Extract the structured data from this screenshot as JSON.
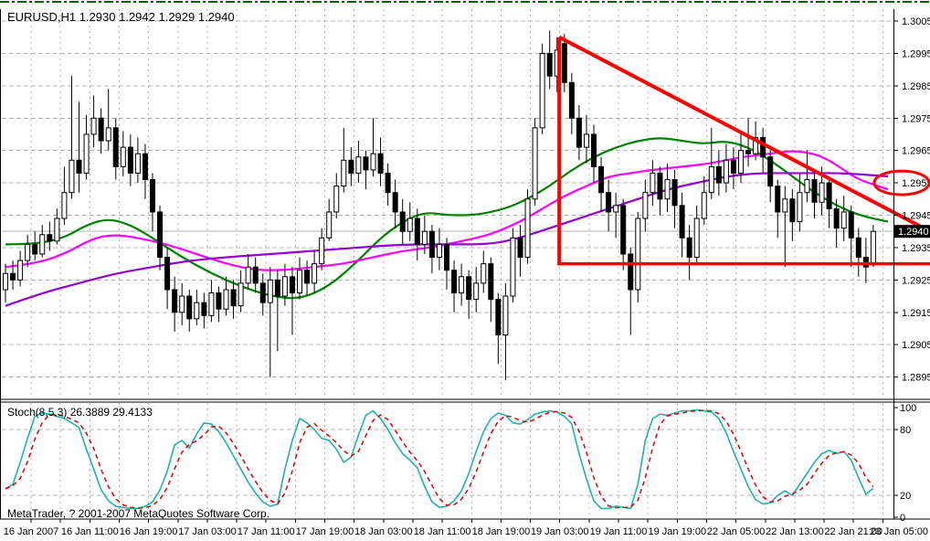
{
  "window": {
    "quote_line": "EURUSD,H1 1.2930 1.2942 1.2929 1.2940",
    "copyright": "MetaTrader, ? 2001-2007 MetaQuotes Software Corp."
  },
  "chart_data": {
    "type": "candlestick",
    "symbol": "EURUSD",
    "timeframe": "H1",
    "current_bar": {
      "open": 1.293,
      "high": 1.2942,
      "low": 1.2929,
      "close": 1.294
    },
    "bid": 1.294,
    "price_axis": {
      "labels": [
        "1.3005",
        "1.2995",
        "1.2985",
        "1.2975",
        "1.2965",
        "1.2955",
        "1.2945",
        "1.2935",
        "1.2925",
        "1.2915",
        "1.2905",
        "1.2895"
      ],
      "top": 1.3005,
      "step": 0.001
    },
    "time_axis": {
      "labels": [
        "16 Jan 2007",
        "16 Jan 11:00",
        "16 Jan 19:00",
        "17 Jan 03:00",
        "17 Jan 11:00",
        "17 Jan 19:00",
        "18 Jan 03:00",
        "18 Jan 11:00",
        "18 Jan 19:00",
        "19 Jan 03:00",
        "19 Jan 11:00",
        "19 Jan 19:00",
        "22 Jan 05:00",
        "22 Jan 13:00",
        "22 Jan 21:00",
        "23 Jan 05:00"
      ]
    },
    "candle_colors": {
      "bull_fill": "#ffffff",
      "bear_fill": "#000000",
      "outline": "#000000"
    },
    "candles": [
      [
        1.2922,
        1.293,
        1.2918,
        1.2927
      ],
      [
        1.2927,
        1.2931,
        1.2922,
        1.2925
      ],
      [
        1.2925,
        1.2934,
        1.2923,
        1.2931
      ],
      [
        1.2931,
        1.2939,
        1.2929,
        1.2936
      ],
      [
        1.2936,
        1.294,
        1.2931,
        1.2933
      ],
      [
        1.2933,
        1.2942,
        1.2932,
        1.2939
      ],
      [
        1.2939,
        1.2943,
        1.2934,
        1.2937
      ],
      [
        1.2937,
        1.2947,
        1.2936,
        1.2944
      ],
      [
        1.2944,
        1.296,
        1.2942,
        1.2952
      ],
      [
        1.2952,
        1.2988,
        1.295,
        1.2962
      ],
      [
        1.2962,
        1.298,
        1.2952,
        1.2958
      ],
      [
        1.2958,
        1.2976,
        1.2956,
        1.297
      ],
      [
        1.297,
        1.2982,
        1.2966,
        1.2975
      ],
      [
        1.2975,
        1.2978,
        1.2964,
        1.2968
      ],
      [
        1.2968,
        1.2984,
        1.2965,
        1.2972
      ],
      [
        1.2972,
        1.2975,
        1.2956,
        1.296
      ],
      [
        1.296,
        1.2971,
        1.2957,
        1.2966
      ],
      [
        1.2966,
        1.297,
        1.2954,
        1.2958
      ],
      [
        1.2958,
        1.2969,
        1.2955,
        1.2964
      ],
      [
        1.2964,
        1.2967,
        1.295,
        1.2956
      ],
      [
        1.2956,
        1.2958,
        1.294,
        1.2946
      ],
      [
        1.2946,
        1.2948,
        1.2928,
        1.2932
      ],
      [
        1.2932,
        1.2935,
        1.2916,
        1.2922
      ],
      [
        1.2922,
        1.2926,
        1.2909,
        1.2915
      ],
      [
        1.2915,
        1.2924,
        1.2911,
        1.292
      ],
      [
        1.292,
        1.2922,
        1.2909,
        1.2913
      ],
      [
        1.2913,
        1.2922,
        1.2911,
        1.2918
      ],
      [
        1.2918,
        1.2921,
        1.291,
        1.2914
      ],
      [
        1.2914,
        1.2925,
        1.2912,
        1.2921
      ],
      [
        1.2921,
        1.2923,
        1.2912,
        1.2916
      ],
      [
        1.2916,
        1.2926,
        1.2914,
        1.2922
      ],
      [
        1.2922,
        1.2925,
        1.2913,
        1.2917
      ],
      [
        1.2917,
        1.2928,
        1.2915,
        1.2924
      ],
      [
        1.2924,
        1.2933,
        1.2922,
        1.2929
      ],
      [
        1.2929,
        1.2932,
        1.2921,
        1.2924
      ],
      [
        1.2924,
        1.2927,
        1.2914,
        1.2918
      ],
      [
        1.2918,
        1.2929,
        1.2895,
        1.2925
      ],
      [
        1.2925,
        1.2928,
        1.2903,
        1.292
      ],
      [
        1.292,
        1.293,
        1.2917,
        1.2926
      ],
      [
        1.2926,
        1.2929,
        1.2908,
        1.2921
      ],
      [
        1.2921,
        1.2932,
        1.2919,
        1.2928
      ],
      [
        1.2928,
        1.2931,
        1.292,
        1.2924
      ],
      [
        1.2924,
        1.2934,
        1.2921,
        1.293
      ],
      [
        1.293,
        1.2941,
        1.2928,
        1.2938
      ],
      [
        1.2938,
        1.295,
        1.2937,
        1.2946
      ],
      [
        1.2946,
        1.2958,
        1.2944,
        1.2954
      ],
      [
        1.2954,
        1.2972,
        1.2952,
        1.2962
      ],
      [
        1.2962,
        1.2966,
        1.2954,
        1.2958
      ],
      [
        1.2958,
        1.2968,
        1.2955,
        1.2963
      ],
      [
        1.2963,
        1.2965,
        1.2953,
        1.2959
      ],
      [
        1.2959,
        1.2975,
        1.2957,
        1.2964
      ],
      [
        1.2964,
        1.2969,
        1.2954,
        1.2958
      ],
      [
        1.2958,
        1.2961,
        1.2948,
        1.2952
      ],
      [
        1.2952,
        1.2956,
        1.2941,
        1.2946
      ],
      [
        1.2946,
        1.295,
        1.2936,
        1.294
      ],
      [
        1.294,
        1.2949,
        1.2937,
        1.2944
      ],
      [
        1.2944,
        1.2947,
        1.2931,
        1.2936
      ],
      [
        1.2936,
        1.2945,
        1.2933,
        1.294
      ],
      [
        1.294,
        1.2942,
        1.2927,
        1.2932
      ],
      [
        1.2932,
        1.2941,
        1.2928,
        1.2936
      ],
      [
        1.2936,
        1.2938,
        1.2922,
        1.2928
      ],
      [
        1.2928,
        1.2931,
        1.2915,
        1.2921
      ],
      [
        1.2921,
        1.293,
        1.2917,
        1.2926
      ],
      [
        1.2926,
        1.2928,
        1.2913,
        1.2919
      ],
      [
        1.2919,
        1.2929,
        1.2915,
        1.2924
      ],
      [
        1.2924,
        1.2934,
        1.2921,
        1.293
      ],
      [
        1.293,
        1.2932,
        1.2912,
        1.2919
      ],
      [
        1.2919,
        1.2921,
        1.2899,
        1.2908
      ],
      [
        1.2908,
        1.2924,
        1.2894,
        1.292
      ],
      [
        1.292,
        1.2941,
        1.2918,
        1.2938
      ],
      [
        1.2938,
        1.2942,
        1.2926,
        1.2932
      ],
      [
        1.2932,
        1.2953,
        1.293,
        1.295
      ],
      [
        1.295,
        1.2975,
        1.2948,
        1.2972
      ],
      [
        1.2972,
        1.2998,
        1.297,
        1.2995
      ],
      [
        1.2995,
        1.3002,
        1.2984,
        1.2988
      ],
      [
        1.2988,
        1.3,
        1.2983,
        1.2996
      ],
      [
        1.2998,
        1.3001,
        1.2983,
        1.2986
      ],
      [
        1.2986,
        1.2989,
        1.297,
        1.2975
      ],
      [
        1.2975,
        1.2979,
        1.2962,
        1.2966
      ],
      [
        1.2966,
        1.2976,
        1.2961,
        1.297
      ],
      [
        1.297,
        1.2973,
        1.2955,
        1.296
      ],
      [
        1.296,
        1.2963,
        1.2946,
        1.2952
      ],
      [
        1.2952,
        1.2956,
        1.294,
        1.2946
      ],
      [
        1.2946,
        1.2952,
        1.2938,
        1.2948
      ],
      [
        1.2948,
        1.295,
        1.2928,
        1.2933
      ],
      [
        1.2933,
        1.2935,
        1.2908,
        1.2922
      ],
      [
        1.2922,
        1.2946,
        1.2918,
        1.2944
      ],
      [
        1.2944,
        1.2956,
        1.294,
        1.2952
      ],
      [
        1.2952,
        1.2962,
        1.2948,
        1.2958
      ],
      [
        1.2958,
        1.296,
        1.2945,
        1.295
      ],
      [
        1.295,
        1.2961,
        1.2946,
        1.2956
      ],
      [
        1.2956,
        1.2959,
        1.2941,
        1.2948
      ],
      [
        1.2948,
        1.2952,
        1.2932,
        1.2938
      ],
      [
        1.2938,
        1.2942,
        1.2925,
        1.2932
      ],
      [
        1.2932,
        1.2948,
        1.293,
        1.2944
      ],
      [
        1.2944,
        1.2957,
        1.2942,
        1.2952
      ],
      [
        1.2952,
        1.2972,
        1.295,
        1.296
      ],
      [
        1.296,
        1.2965,
        1.2951,
        1.2955
      ],
      [
        1.2955,
        1.2967,
        1.2952,
        1.2962
      ],
      [
        1.2962,
        1.2966,
        1.2953,
        1.2958
      ],
      [
        1.2958,
        1.297,
        1.2955,
        1.2965
      ],
      [
        1.2965,
        1.2975,
        1.296,
        1.2964
      ],
      [
        1.2964,
        1.2974,
        1.2962,
        1.2969
      ],
      [
        1.2969,
        1.2972,
        1.2958,
        1.2963
      ],
      [
        1.2963,
        1.2965,
        1.2949,
        1.2954
      ],
      [
        1.2954,
        1.2956,
        1.2938,
        1.2946
      ],
      [
        1.2946,
        1.2954,
        1.2929,
        1.295
      ],
      [
        1.295,
        1.2953,
        1.2937,
        1.2943
      ],
      [
        1.2943,
        1.2958,
        1.294,
        1.2952
      ],
      [
        1.2952,
        1.2965,
        1.2949,
        1.2956
      ],
      [
        1.2956,
        1.2959,
        1.2944,
        1.2949
      ],
      [
        1.2949,
        1.296,
        1.2945,
        1.2955
      ],
      [
        1.2955,
        1.2957,
        1.2941,
        1.2947
      ],
      [
        1.2947,
        1.295,
        1.2935,
        1.2941
      ],
      [
        1.2941,
        1.2951,
        1.2937,
        1.2946
      ],
      [
        1.2946,
        1.2948,
        1.2929,
        1.2938
      ],
      [
        1.2938,
        1.2941,
        1.2926,
        1.2932
      ],
      [
        1.2932,
        1.2938,
        1.2924,
        1.2929
      ],
      [
        1.293,
        1.2942,
        1.2929,
        1.294
      ]
    ],
    "moving_averages": [
      {
        "name": "ma-fast-green",
        "color": "#008000",
        "points": [
          [
            0,
            1.2936
          ],
          [
            4,
            1.2936
          ],
          [
            8,
            1.2938
          ],
          [
            11,
            1.2942
          ],
          [
            14,
            1.2944
          ],
          [
            17,
            1.2942
          ],
          [
            20,
            1.2938
          ],
          [
            24,
            1.2932
          ],
          [
            28,
            1.2927
          ],
          [
            32,
            1.2923
          ],
          [
            36,
            1.292
          ],
          [
            40,
            1.2919
          ],
          [
            44,
            1.2923
          ],
          [
            48,
            1.2931
          ],
          [
            51,
            1.2938
          ],
          [
            54,
            1.2943
          ],
          [
            57,
            1.2946
          ],
          [
            60,
            1.2945
          ],
          [
            64,
            1.2945
          ],
          [
            68,
            1.2947
          ],
          [
            71,
            1.295
          ],
          [
            74,
            1.2954
          ],
          [
            77,
            1.2959
          ],
          [
            80,
            1.2963
          ],
          [
            83,
            1.2966
          ],
          [
            86,
            1.2968
          ],
          [
            89,
            1.2969
          ],
          [
            92,
            1.2968
          ],
          [
            95,
            1.2967
          ],
          [
            98,
            1.2968
          ],
          [
            101,
            1.2966
          ],
          [
            104,
            1.2962
          ],
          [
            107,
            1.2957
          ],
          [
            110,
            1.2952
          ],
          [
            113,
            1.2948
          ],
          [
            116,
            1.2945
          ],
          [
            120,
            1.2943
          ]
        ]
      },
      {
        "name": "ma-mid-magenta",
        "color": "#FF00FF",
        "points": [
          [
            0,
            1.2929
          ],
          [
            4,
            1.293
          ],
          [
            8,
            1.2933
          ],
          [
            12,
            1.2938
          ],
          [
            15,
            1.2939
          ],
          [
            18,
            1.2938
          ],
          [
            22,
            1.2936
          ],
          [
            26,
            1.2933
          ],
          [
            30,
            1.293
          ],
          [
            34,
            1.2928
          ],
          [
            38,
            1.2928
          ],
          [
            42,
            1.2929
          ],
          [
            46,
            1.293
          ],
          [
            50,
            1.2932
          ],
          [
            54,
            1.2934
          ],
          [
            58,
            1.2935
          ],
          [
            62,
            1.2937
          ],
          [
            66,
            1.2939
          ],
          [
            70,
            1.2943
          ],
          [
            73,
            1.2947
          ],
          [
            76,
            1.2951
          ],
          [
            79,
            1.2954
          ],
          [
            82,
            1.2957
          ],
          [
            85,
            1.2958
          ],
          [
            88,
            1.2959
          ],
          [
            92,
            1.296
          ],
          [
            96,
            1.2961
          ],
          [
            100,
            1.2963
          ],
          [
            104,
            1.2964
          ],
          [
            107,
            1.2965
          ],
          [
            110,
            1.2964
          ],
          [
            112,
            1.2962
          ],
          [
            114,
            1.2959
          ],
          [
            116,
            1.2956
          ],
          [
            120,
            1.2953
          ]
        ]
      },
      {
        "name": "ma-slow-purple",
        "color": "#9400D3",
        "points": [
          [
            0,
            1.2917
          ],
          [
            5,
            1.2921
          ],
          [
            10,
            1.2924
          ],
          [
            15,
            1.2927
          ],
          [
            20,
            1.2929
          ],
          [
            25,
            1.2931
          ],
          [
            30,
            1.2932
          ],
          [
            36,
            1.2933
          ],
          [
            42,
            1.2934
          ],
          [
            48,
            1.2935
          ],
          [
            54,
            1.2936
          ],
          [
            60,
            1.2936
          ],
          [
            66,
            1.2936
          ],
          [
            70,
            1.2938
          ],
          [
            74,
            1.2941
          ],
          [
            78,
            1.2944
          ],
          [
            82,
            1.2947
          ],
          [
            86,
            1.295
          ],
          [
            90,
            1.2953
          ],
          [
            94,
            1.2955
          ],
          [
            98,
            1.2957
          ],
          [
            102,
            1.2958
          ],
          [
            106,
            1.2958
          ],
          [
            110,
            1.2958
          ],
          [
            114,
            1.2958
          ],
          [
            120,
            1.2957
          ]
        ]
      }
    ],
    "annotations": {
      "color": "#FF0000",
      "triangle": {
        "apex_bar": 75.3,
        "apex_price": 1.3,
        "support_price": 1.293,
        "trendline_end_price": 1.294
      },
      "ellipse_highlight": {
        "price": 1.2955
      }
    },
    "indicator_pane": {
      "name": "Stoch(8,5,3)",
      "label": "Stoch(8,5,3) 26.3889 29.4133",
      "k_value": 26.3889,
      "d_value": 29.4133,
      "scale_labels": [
        100,
        80,
        20,
        0
      ],
      "grid_levels": [
        80,
        20
      ],
      "k_color": "#20B2AA",
      "d_color": "#E00000",
      "k_values": [
        26,
        30,
        50,
        72,
        92,
        95,
        94,
        92,
        90,
        86,
        82,
        62,
        44,
        25,
        15,
        10,
        9,
        8,
        8,
        10,
        14,
        25,
        42,
        66,
        70,
        63,
        76,
        86,
        85,
        78,
        68,
        56,
        44,
        32,
        22,
        14,
        10,
        12,
        44,
        70,
        90,
        86,
        80,
        72,
        70,
        62,
        50,
        55,
        75,
        93,
        97,
        90,
        80,
        68,
        58,
        52,
        45,
        28,
        14,
        9,
        10,
        15,
        24,
        40,
        60,
        78,
        90,
        95,
        93,
        86,
        85,
        89,
        94,
        96,
        97,
        96,
        92,
        85,
        58,
        35,
        15,
        8,
        8,
        10,
        9,
        8,
        30,
        70,
        90,
        94,
        93,
        95,
        97,
        97,
        98,
        97,
        96,
        90,
        77,
        60,
        44,
        28,
        16,
        12,
        13,
        20,
        24,
        20,
        30,
        40,
        50,
        58,
        61,
        58,
        60,
        52,
        36,
        21,
        26.39
      ]
    }
  }
}
